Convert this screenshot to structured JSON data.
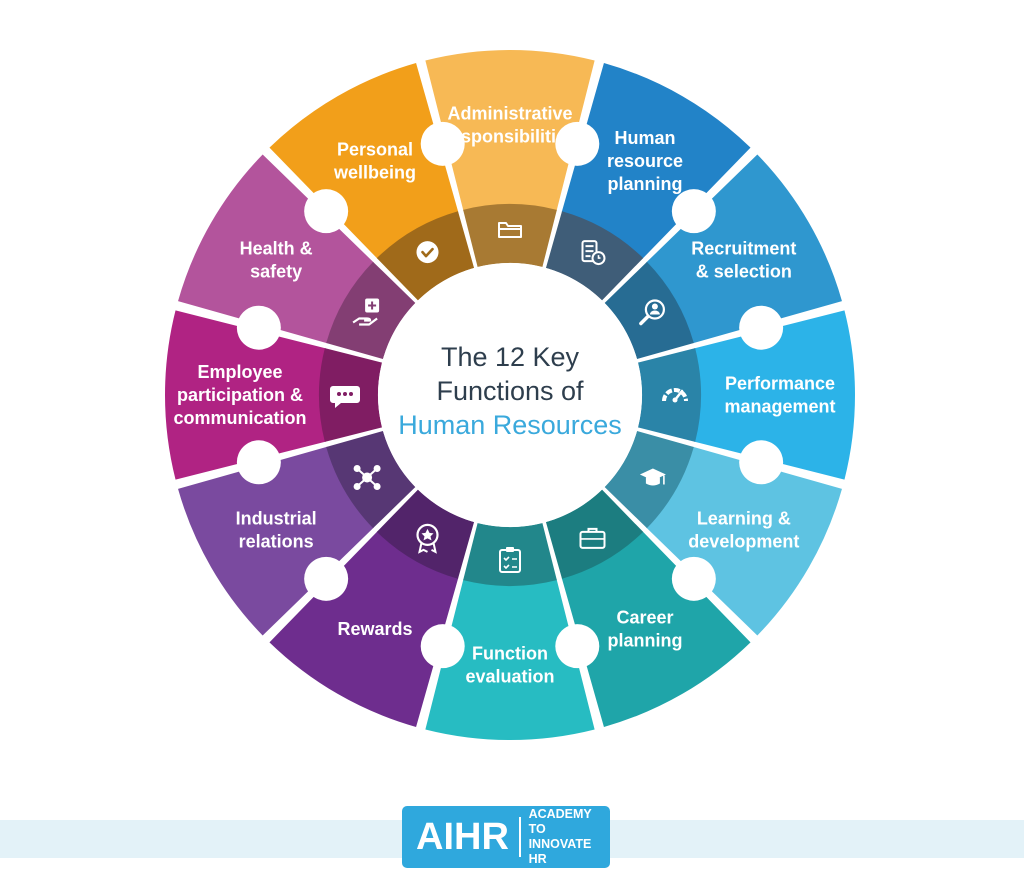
{
  "center": {
    "title_line1": "The 12 Key",
    "title_line2": "Functions of",
    "title_accent": "Human Resources"
  },
  "functions": [
    {
      "lines": [
        "Administrative",
        "responsibilities"
      ],
      "color": "#f7b955",
      "inner": "#a87a33",
      "icon": "folder-icon"
    },
    {
      "lines": [
        "Human",
        "resource",
        "planning"
      ],
      "color": "#2283c8",
      "inner": "#3f5d78",
      "icon": "checklist-clock-icon"
    },
    {
      "lines": [
        "Recruitment",
        "& selection"
      ],
      "color": "#2f97cf",
      "inner": "#276c93",
      "icon": "magnifier-person-icon"
    },
    {
      "lines": [
        "Performance",
        "management"
      ],
      "color": "#2cb3e8",
      "inner": "#2a84a8",
      "icon": "gauge-icon"
    },
    {
      "lines": [
        "Learning &",
        "development"
      ],
      "color": "#5ec3e2",
      "inner": "#3a8ea6",
      "icon": "graduation-cap-icon"
    },
    {
      "lines": [
        "Career",
        "planning"
      ],
      "color": "#1fa5a9",
      "inner": "#1c7d80",
      "icon": "briefcase-icon"
    },
    {
      "lines": [
        "Function",
        "evaluation"
      ],
      "color": "#27bcc2",
      "inner": "#22878b",
      "icon": "clipboard-check-icon"
    },
    {
      "lines": [
        "Rewards"
      ],
      "color": "#6e2d8e",
      "inner": "#52246a",
      "icon": "award-badge-icon"
    },
    {
      "lines": [
        "Industrial",
        "relations"
      ],
      "color": "#7a4a9f",
      "inner": "#573774",
      "icon": "network-icon"
    },
    {
      "lines": [
        "Employee",
        "participation &",
        "communication"
      ],
      "color": "#b02383",
      "inner": "#801d63",
      "icon": "chat-bubble-icon"
    },
    {
      "lines": [
        "Health &",
        "safety"
      ],
      "color": "#b3549c",
      "inner": "#833e73",
      "icon": "hand-medical-icon"
    },
    {
      "lines": [
        "Personal",
        "wellbeing"
      ],
      "color": "#f29f1a",
      "inner": "#a06a1a",
      "icon": "check-circle-icon"
    }
  ],
  "logo": {
    "mark": "AIHR",
    "line1": "ACADEMY TO",
    "line2": "INNOVATE HR"
  }
}
